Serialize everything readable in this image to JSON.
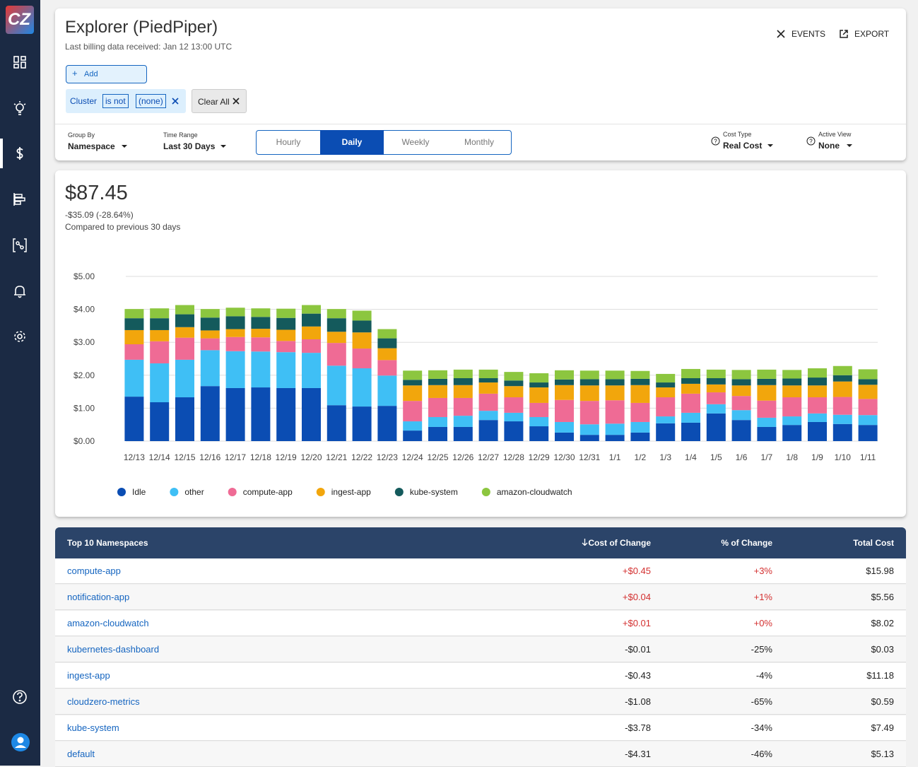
{
  "sidebar": {
    "logo": "CZ"
  },
  "header": {
    "title": "Explorer (PiedPiper)",
    "subtitle": "Last billing data received: Jan 12 13:00 UTC",
    "actions": [
      "EVENTS",
      "EXPORT"
    ],
    "add_button": "Add",
    "filter": {
      "field": "Cluster",
      "operator": "is not",
      "value": "(none)"
    },
    "clear_all": "Clear All"
  },
  "controls": {
    "group_by": {
      "label": "Group By",
      "value": "Namespace"
    },
    "time_range": {
      "label": "Time Range",
      "value": "Last 30 Days"
    },
    "granularity": {
      "options": [
        "Hourly",
        "Daily",
        "Weekly",
        "Monthly"
      ],
      "selected": 1
    },
    "cost_type": {
      "label": "Cost Type",
      "value": "Real Cost"
    },
    "active_view": {
      "label": "Active View",
      "value": "None"
    }
  },
  "summary": {
    "total": "$87.45",
    "change": "-$35.09 (-28.64%)",
    "comparison": "Compared to previous 30 days"
  },
  "chart_data": {
    "type": "stacked_bar",
    "categories": [
      "12/13",
      "12/14",
      "12/15",
      "12/16",
      "12/17",
      "12/18",
      "12/19",
      "12/20",
      "12/21",
      "12/22",
      "12/23",
      "12/24",
      "12/25",
      "12/26",
      "12/27",
      "12/28",
      "12/29",
      "12/30",
      "12/31",
      "1/1",
      "1/2",
      "1/3",
      "1/4",
      "1/5",
      "1/6",
      "1/7",
      "1/8",
      "1/9",
      "1/10",
      "1/11"
    ],
    "ylim": [
      0,
      5
    ],
    "yticks": [
      {
        "value": 0,
        "label": "$0.00"
      },
      {
        "value": 1,
        "label": "$1.00"
      },
      {
        "value": 2,
        "label": "$2.00"
      },
      {
        "value": 3,
        "label": "$3.00"
      },
      {
        "value": 4,
        "label": "$4.00"
      },
      {
        "value": 5,
        "label": "$5.00"
      }
    ],
    "grid": true,
    "series": [
      {
        "name": "Idle",
        "color": "#0b4db3",
        "values": [
          1.35,
          1.18,
          1.33,
          1.67,
          1.61,
          1.63,
          1.61,
          1.61,
          1.09,
          1.05,
          1.07,
          0.32,
          0.43,
          0.43,
          0.64,
          0.6,
          0.45,
          0.26,
          0.19,
          0.19,
          0.26,
          0.54,
          0.56,
          0.84,
          0.64,
          0.43,
          0.49,
          0.58,
          0.52,
          0.49
        ]
      },
      {
        "name": "other",
        "color": "#3fbff5",
        "values": [
          1.12,
          1.18,
          1.14,
          1.09,
          1.12,
          1.09,
          1.09,
          1.07,
          1.2,
          1.16,
          0.92,
          0.28,
          0.3,
          0.34,
          0.28,
          0.26,
          0.28,
          0.32,
          0.32,
          0.34,
          0.32,
          0.21,
          0.3,
          0.28,
          0.3,
          0.28,
          0.26,
          0.26,
          0.28,
          0.3
        ]
      },
      {
        "name": "compute-app",
        "color": "#ef6b95",
        "values": [
          0.47,
          0.67,
          0.67,
          0.36,
          0.43,
          0.43,
          0.34,
          0.41,
          0.69,
          0.6,
          0.47,
          0.62,
          0.58,
          0.54,
          0.52,
          0.47,
          0.43,
          0.67,
          0.71,
          0.71,
          0.58,
          0.58,
          0.58,
          0.36,
          0.43,
          0.52,
          0.58,
          0.49,
          0.54,
          0.49
        ]
      },
      {
        "name": "ingest-app",
        "color": "#f2a60c",
        "values": [
          0.43,
          0.34,
          0.32,
          0.24,
          0.24,
          0.26,
          0.34,
          0.39,
          0.34,
          0.49,
          0.36,
          0.47,
          0.39,
          0.39,
          0.34,
          0.34,
          0.47,
          0.45,
          0.47,
          0.45,
          0.54,
          0.3,
          0.3,
          0.24,
          0.32,
          0.47,
          0.36,
          0.36,
          0.47,
          0.43
        ]
      },
      {
        "name": "kube-system",
        "color": "#145a5c",
        "values": [
          0.36,
          0.36,
          0.39,
          0.39,
          0.39,
          0.36,
          0.36,
          0.39,
          0.41,
          0.36,
          0.3,
          0.17,
          0.19,
          0.21,
          0.13,
          0.17,
          0.15,
          0.17,
          0.19,
          0.19,
          0.19,
          0.15,
          0.17,
          0.19,
          0.19,
          0.19,
          0.21,
          0.24,
          0.19,
          0.17
        ]
      },
      {
        "name": "amazon-cloudwatch",
        "color": "#8cc63f",
        "values": [
          0.28,
          0.3,
          0.28,
          0.26,
          0.26,
          0.26,
          0.28,
          0.26,
          0.28,
          0.3,
          0.28,
          0.28,
          0.26,
          0.26,
          0.26,
          0.26,
          0.28,
          0.28,
          0.26,
          0.26,
          0.24,
          0.26,
          0.28,
          0.26,
          0.28,
          0.28,
          0.26,
          0.28,
          0.28,
          0.3
        ]
      }
    ]
  },
  "table": {
    "columns": [
      "Top 10 Namespaces",
      "Cost of Change",
      "% of Change",
      "Total Cost"
    ],
    "rows": [
      [
        "compute-app",
        "+$0.45",
        "+3%",
        "$15.98"
      ],
      [
        "notification-app",
        "+$0.04",
        "+1%",
        "$5.56"
      ],
      [
        "amazon-cloudwatch",
        "+$0.01",
        "+0%",
        "$8.02"
      ],
      [
        "kubernetes-dashboard",
        "-$0.01",
        "-25%",
        "$0.03"
      ],
      [
        "ingest-app",
        "-$0.43",
        "-4%",
        "$11.18"
      ],
      [
        "cloudzero-metrics",
        "-$1.08",
        "-65%",
        "$0.59"
      ],
      [
        "kube-system",
        "-$3.78",
        "-34%",
        "$7.49"
      ],
      [
        "default",
        "-$4.31",
        "-46%",
        "$5.13"
      ]
    ]
  }
}
